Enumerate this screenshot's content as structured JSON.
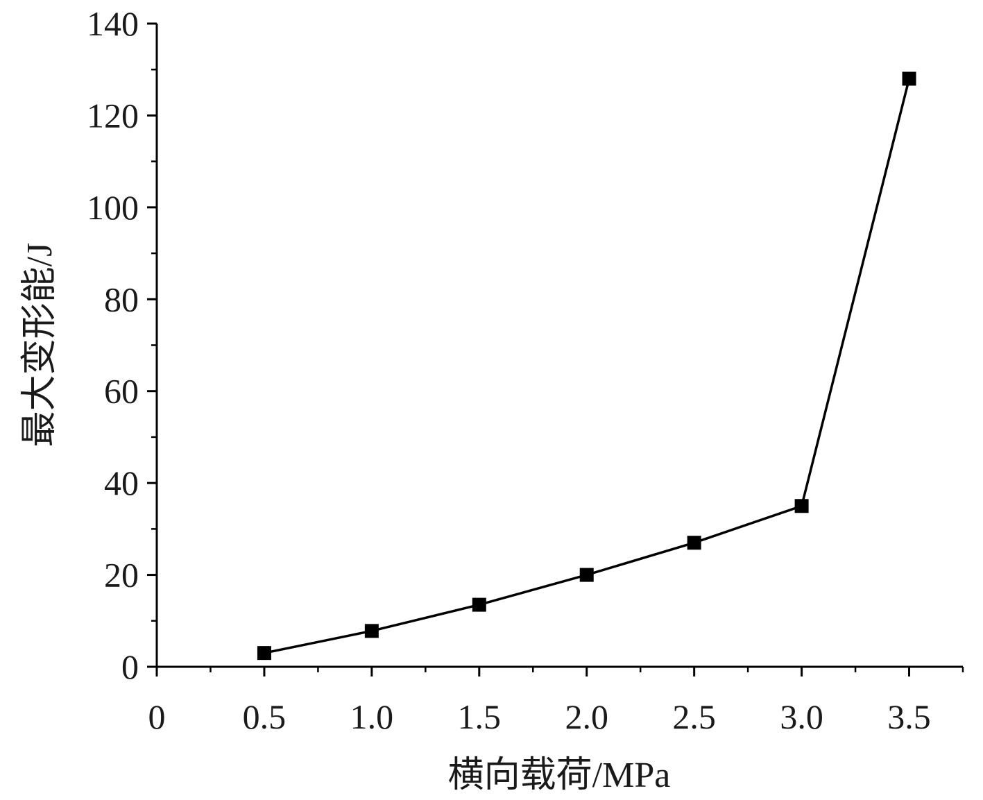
{
  "chart_data": {
    "type": "line",
    "xlabel": "横向载荷/MPa",
    "ylabel": "最大变形能/J",
    "xlim": [
      0,
      3.75
    ],
    "ylim": [
      0,
      140
    ],
    "x_ticks": [
      "0",
      "0.5",
      "1.0",
      "1.5",
      "2.0",
      "2.5",
      "3.0",
      "3.5"
    ],
    "x_tick_values": [
      0,
      0.5,
      1.0,
      1.5,
      2.0,
      2.5,
      3.0,
      3.5
    ],
    "y_ticks": [
      "0",
      "20",
      "40",
      "60",
      "80",
      "100",
      "120",
      "140"
    ],
    "y_tick_values": [
      0,
      20,
      40,
      60,
      80,
      100,
      120,
      140
    ],
    "grid": false,
    "marker": "square",
    "color": "#000000",
    "series": [
      {
        "x": [
          0.5,
          1.0,
          1.5,
          2.0,
          2.5,
          3.0,
          3.5
        ],
        "values": [
          3,
          7.8,
          13.5,
          20,
          27,
          35,
          128
        ]
      }
    ]
  }
}
